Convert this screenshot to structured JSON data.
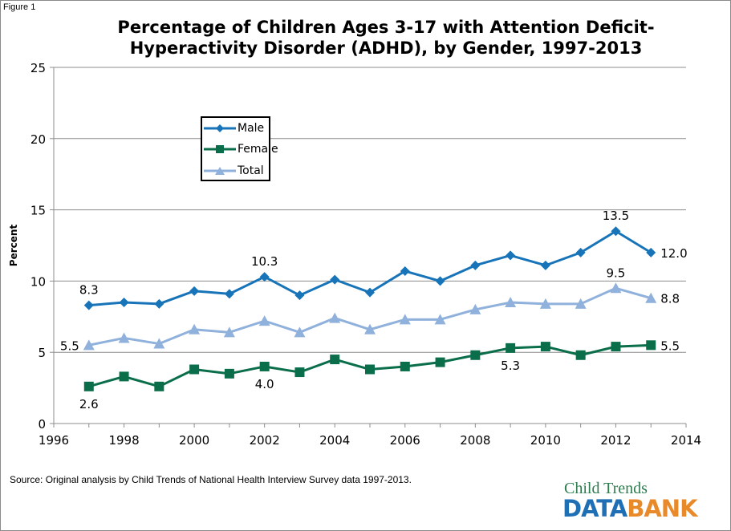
{
  "figure_label": "Figure 1",
  "source": "Source:  Original analysis by Child Trends of National Health Interview Survey data 1997-2013.",
  "logo": {
    "top": "Child Trends",
    "data": "DATA",
    "bank": "BANK"
  },
  "colors": {
    "male": "#1874b8",
    "female": "#0b6e4a",
    "total": "#8fb1dc",
    "grid": "#8c8c8c"
  },
  "chart_data": {
    "type": "line",
    "title": "Percentage of Children Ages 3-17 with Attention Deficit-Hyperactivity Disorder (ADHD), by Gender, 1997-2013",
    "title_lines": [
      "Percentage of Children Ages 3-17 with Attention Deficit-",
      "Hyperactivity Disorder (ADHD), by Gender, 1997-2013"
    ],
    "xlabel": "",
    "ylabel": "Percent",
    "xlim": [
      1996,
      2014
    ],
    "ylim": [
      0,
      25
    ],
    "x_ticks": [
      "1996",
      "1998",
      "2000",
      "2002",
      "2004",
      "2006",
      "2008",
      "2010",
      "2012",
      "2014"
    ],
    "y_ticks": [
      "0",
      "5",
      "10",
      "15",
      "20",
      "25"
    ],
    "grid": "horizontal",
    "legend_position": "top-left",
    "x": [
      1997,
      1998,
      1999,
      2000,
      2001,
      2002,
      2003,
      2004,
      2005,
      2006,
      2007,
      2008,
      2009,
      2010,
      2011,
      2012,
      2013
    ],
    "series": [
      {
        "name": "Male",
        "marker": "diamond",
        "values": [
          8.3,
          8.5,
          8.4,
          9.3,
          9.1,
          10.3,
          9.0,
          10.1,
          9.2,
          10.7,
          10.0,
          11.1,
          11.8,
          11.1,
          12.0,
          13.5,
          12.0
        ]
      },
      {
        "name": "Female",
        "marker": "square",
        "values": [
          2.6,
          3.3,
          2.6,
          3.8,
          3.5,
          4.0,
          3.6,
          4.5,
          3.8,
          4.0,
          4.3,
          4.8,
          5.3,
          5.4,
          4.8,
          5.4,
          5.5
        ]
      },
      {
        "name": "Total",
        "marker": "triangle",
        "values": [
          5.5,
          6.0,
          5.6,
          6.6,
          6.4,
          7.2,
          6.4,
          7.4,
          6.6,
          7.3,
          7.3,
          8.0,
          8.5,
          8.4,
          8.4,
          9.5,
          8.8
        ]
      }
    ],
    "annotations": [
      {
        "series": "Male",
        "x": 1997,
        "text": "8.3",
        "pos": "above"
      },
      {
        "series": "Male",
        "x": 2002,
        "text": "10.3",
        "pos": "above"
      },
      {
        "series": "Male",
        "x": 2012,
        "text": "13.5",
        "pos": "above"
      },
      {
        "series": "Male",
        "x": 2013,
        "text": "12.0",
        "pos": "right"
      },
      {
        "series": "Total",
        "x": 1997,
        "text": "5.5",
        "pos": "left"
      },
      {
        "series": "Total",
        "x": 2012,
        "text": "9.5",
        "pos": "above"
      },
      {
        "series": "Total",
        "x": 2013,
        "text": "8.8",
        "pos": "right"
      },
      {
        "series": "Female",
        "x": 1997,
        "text": "2.6",
        "pos": "below"
      },
      {
        "series": "Female",
        "x": 2002,
        "text": "4.0",
        "pos": "below"
      },
      {
        "series": "Female",
        "x": 2009,
        "text": "5.3",
        "pos": "below"
      },
      {
        "series": "Female",
        "x": 2013,
        "text": "5.5",
        "pos": "right"
      }
    ]
  }
}
